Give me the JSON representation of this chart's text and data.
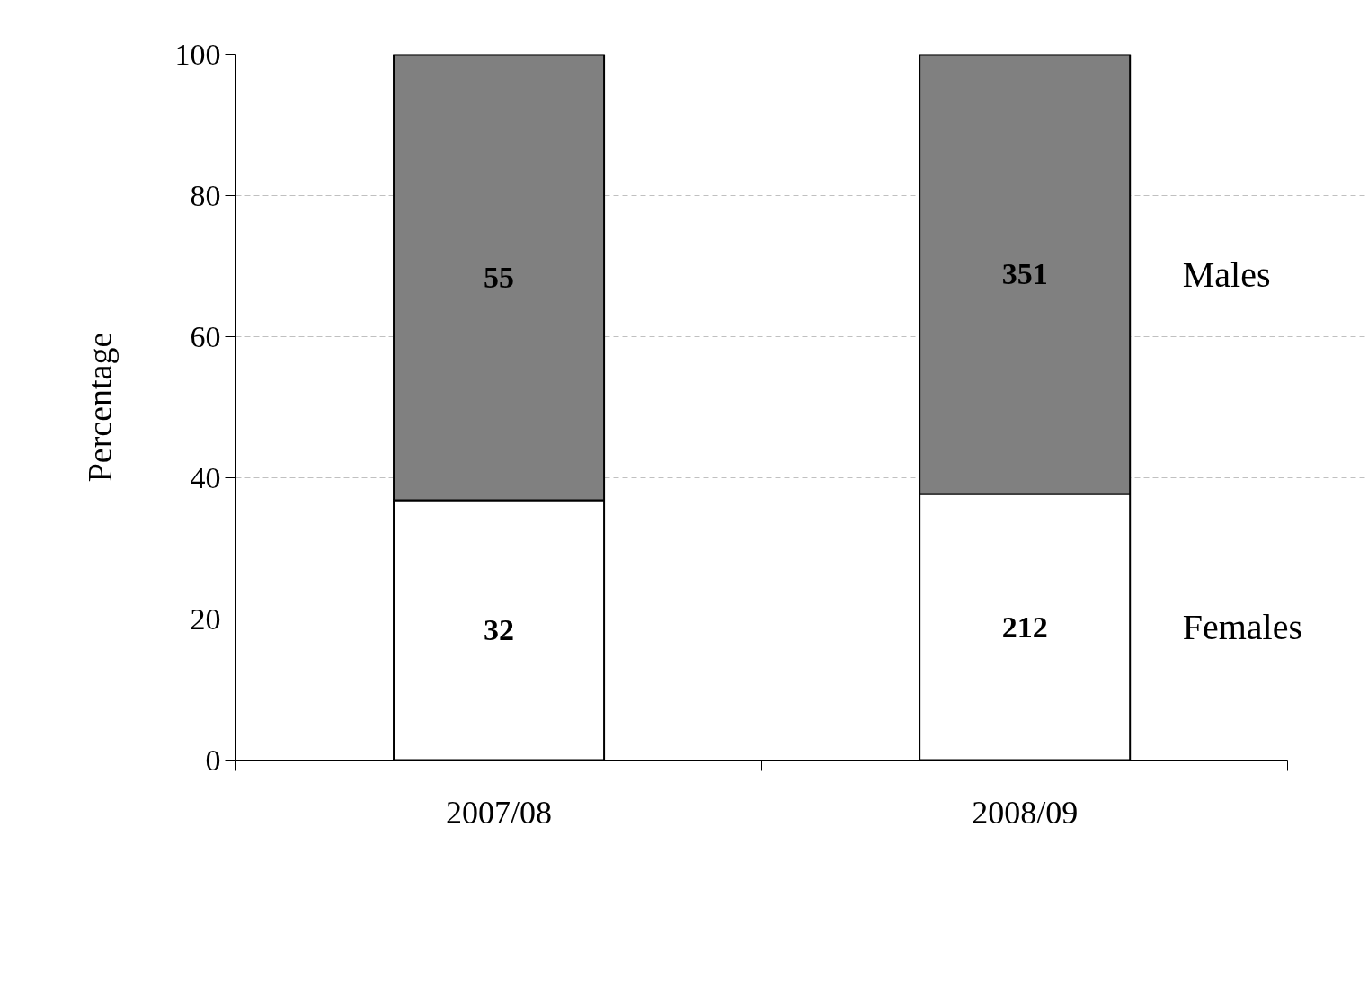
{
  "chart_data": {
    "type": "bar",
    "stacked": true,
    "ylabel": "Percentage",
    "categories": [
      "2007/08",
      "2008/09"
    ],
    "series": [
      {
        "name": "Females",
        "color": "#ffffff",
        "values": [
          36.8,
          37.7
        ]
      },
      {
        "name": "Males",
        "color": "#808080",
        "values": [
          63.2,
          62.3
        ]
      }
    ],
    "annotations": [
      "32",
      "212",
      "55",
      "351"
    ],
    "ylim": [
      0,
      100
    ],
    "yticks": [
      0,
      20,
      40,
      60,
      80,
      100
    ],
    "grid": "y"
  }
}
